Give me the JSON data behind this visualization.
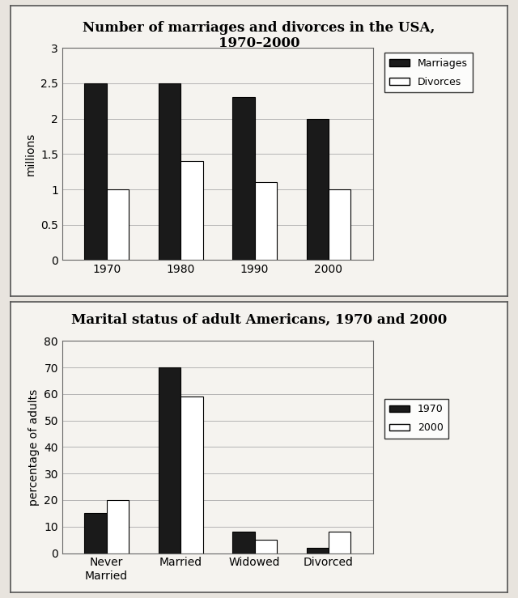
{
  "chart1": {
    "title": "Number of marriages and divorces in the USA,\n1970–2000",
    "years": [
      1970,
      1980,
      1990,
      2000
    ],
    "marriages": [
      2.5,
      2.5,
      2.3,
      2.0
    ],
    "divorces": [
      1.0,
      1.4,
      1.1,
      1.0
    ],
    "ylabel": "millions",
    "ylim": [
      0,
      3
    ],
    "yticks": [
      0,
      0.5,
      1.0,
      1.5,
      2.0,
      2.5,
      3.0
    ],
    "ytick_labels": [
      "0",
      "0.5",
      "1",
      "1.5",
      "2",
      "2.5",
      "3"
    ],
    "legend_labels": [
      "Marriages",
      "Divorces"
    ],
    "bar_color_marriages": "#1a1a1a",
    "bar_color_divorces": "#ffffff",
    "bar_edgecolor": "#000000"
  },
  "chart2": {
    "title": "Marital status of adult Americans, 1970 and 2000",
    "categories": [
      "Never\nMarried",
      "Married",
      "Widowed",
      "Divorced"
    ],
    "values_1970": [
      15,
      70,
      8,
      2
    ],
    "values_2000": [
      20,
      59,
      5,
      8
    ],
    "ylabel": "percentage of adults",
    "ylim": [
      0,
      80
    ],
    "yticks": [
      0,
      10,
      20,
      30,
      40,
      50,
      60,
      70,
      80
    ],
    "ytick_labels": [
      "0",
      "10",
      "20",
      "30",
      "40",
      "50",
      "60",
      "70",
      "80"
    ],
    "legend_labels": [
      "1970",
      "2000"
    ],
    "bar_color_1970": "#1a1a1a",
    "bar_color_2000": "#ffffff",
    "bar_edgecolor": "#000000"
  },
  "figure_bg": "#e8e4de",
  "panel_bg": "#f5f3ef",
  "plot_bg": "#f5f3ef"
}
